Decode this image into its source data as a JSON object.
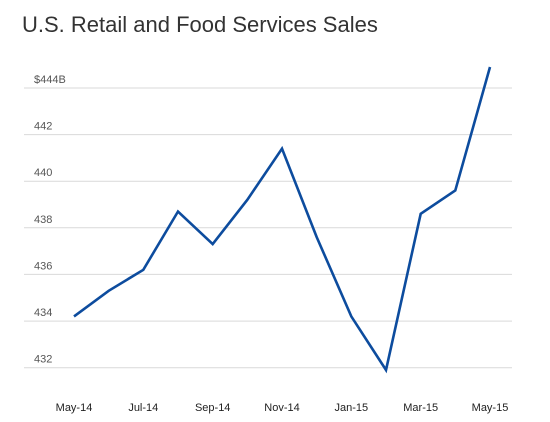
{
  "chart_data": {
    "type": "line",
    "title": "U.S. Retail and Food Services Sales",
    "xlabel": "",
    "ylabel": "",
    "x": [
      "May-14",
      "Jun-14",
      "Jul-14",
      "Aug-14",
      "Sep-14",
      "Oct-14",
      "Nov-14",
      "Dec-14",
      "Jan-15",
      "Feb-15",
      "Mar-15",
      "Apr-15",
      "May-15"
    ],
    "x_tick_labels": [
      "May-14",
      "Jul-14",
      "Sep-14",
      "Nov-14",
      "Jan-15",
      "Mar-15",
      "May-15"
    ],
    "y_ticks": [
      432,
      434,
      436,
      438,
      440,
      442,
      444
    ],
    "y_tick_labels": [
      "432",
      "434",
      "436",
      "438",
      "440",
      "442",
      "$444B"
    ],
    "ylim": [
      431.6,
      445.8
    ],
    "series": [
      {
        "values": [
          434.2,
          435.3,
          436.2,
          438.7,
          437.3,
          439.2,
          441.4,
          437.6,
          434.2,
          431.9,
          438.6,
          439.6,
          444.9
        ]
      }
    ],
    "line_color": "#0d4c9e",
    "grid": true,
    "grid_color": "#d9d9d9",
    "legend": "none"
  }
}
